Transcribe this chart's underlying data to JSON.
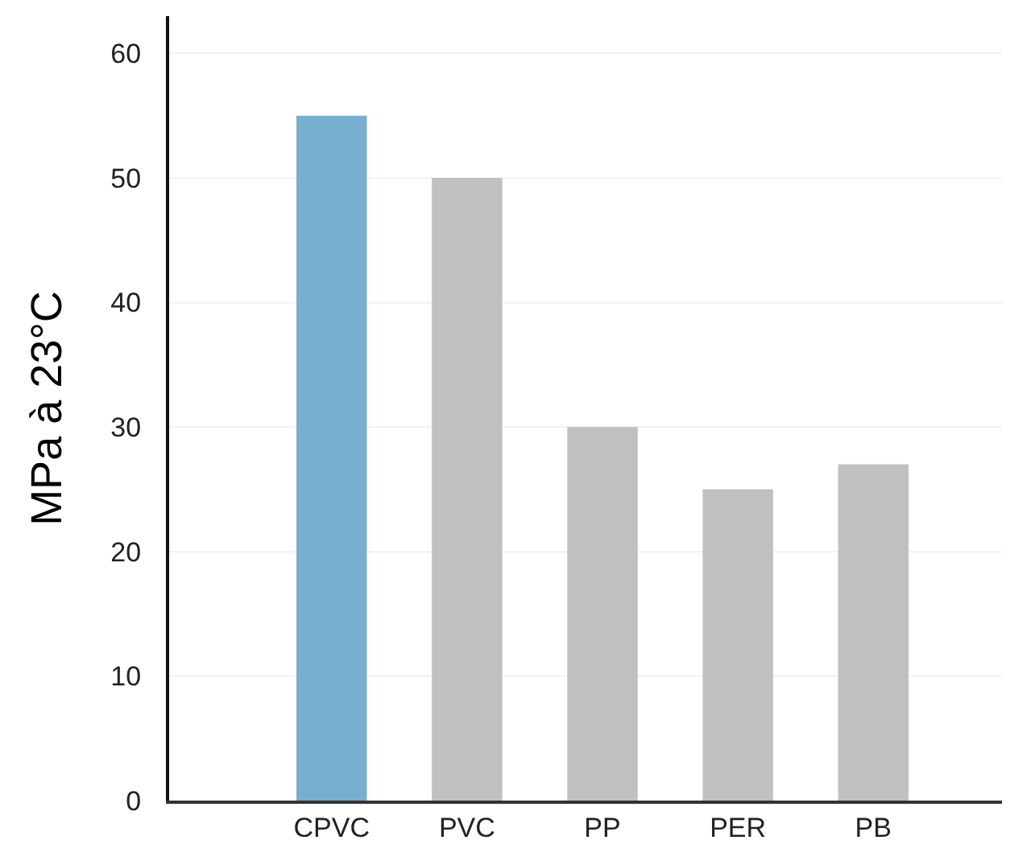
{
  "chart_data": {
    "type": "bar",
    "ylabel": "MPa à 23°C",
    "categories": [
      "CPVC",
      "PVC",
      "PP",
      "PER",
      "PB"
    ],
    "values": [
      55,
      50,
      30,
      25,
      27
    ],
    "colors": [
      "#78aed0",
      "#c0c0c0",
      "#c0c0c0",
      "#c0c0c0",
      "#c0c0c0"
    ],
    "ylim": [
      0,
      63
    ],
    "yticks": [
      0,
      10,
      20,
      30,
      40,
      50,
      60
    ],
    "grid": "y"
  }
}
